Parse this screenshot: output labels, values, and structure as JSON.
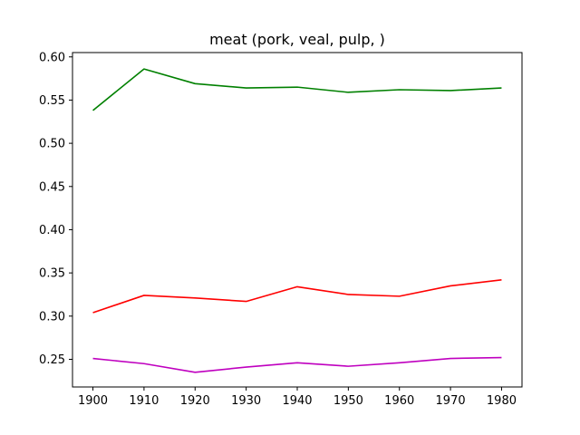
{
  "chart_data": {
    "type": "line",
    "title": "meat (pork, veal, pulp, )",
    "xlabel": "",
    "ylabel": "",
    "x": [
      1900,
      1910,
      1920,
      1930,
      1940,
      1950,
      1960,
      1970,
      1980
    ],
    "xlim": [
      1896,
      1984
    ],
    "ylim": [
      0.218,
      0.605
    ],
    "xticks": [
      1900,
      1910,
      1920,
      1930,
      1940,
      1950,
      1960,
      1970,
      1980
    ],
    "yticks": [
      0.25,
      0.3,
      0.35,
      0.4,
      0.45,
      0.5,
      0.55,
      0.6
    ],
    "ytick_labels": [
      "0.25",
      "0.30",
      "0.35",
      "0.40",
      "0.45",
      "0.50",
      "0.55",
      "0.60"
    ],
    "grid": false,
    "series": [
      {
        "color": "#008000",
        "values": [
          0.538,
          0.586,
          0.569,
          0.564,
          0.565,
          0.559,
          0.562,
          0.561,
          0.564
        ]
      },
      {
        "color": "#ff0000",
        "values": [
          0.304,
          0.324,
          0.321,
          0.317,
          0.334,
          0.325,
          0.323,
          0.335,
          0.342
        ]
      },
      {
        "color": "#bf00bf",
        "values": [
          0.251,
          0.245,
          0.235,
          0.241,
          0.246,
          0.242,
          0.246,
          0.251,
          0.252
        ]
      }
    ]
  }
}
